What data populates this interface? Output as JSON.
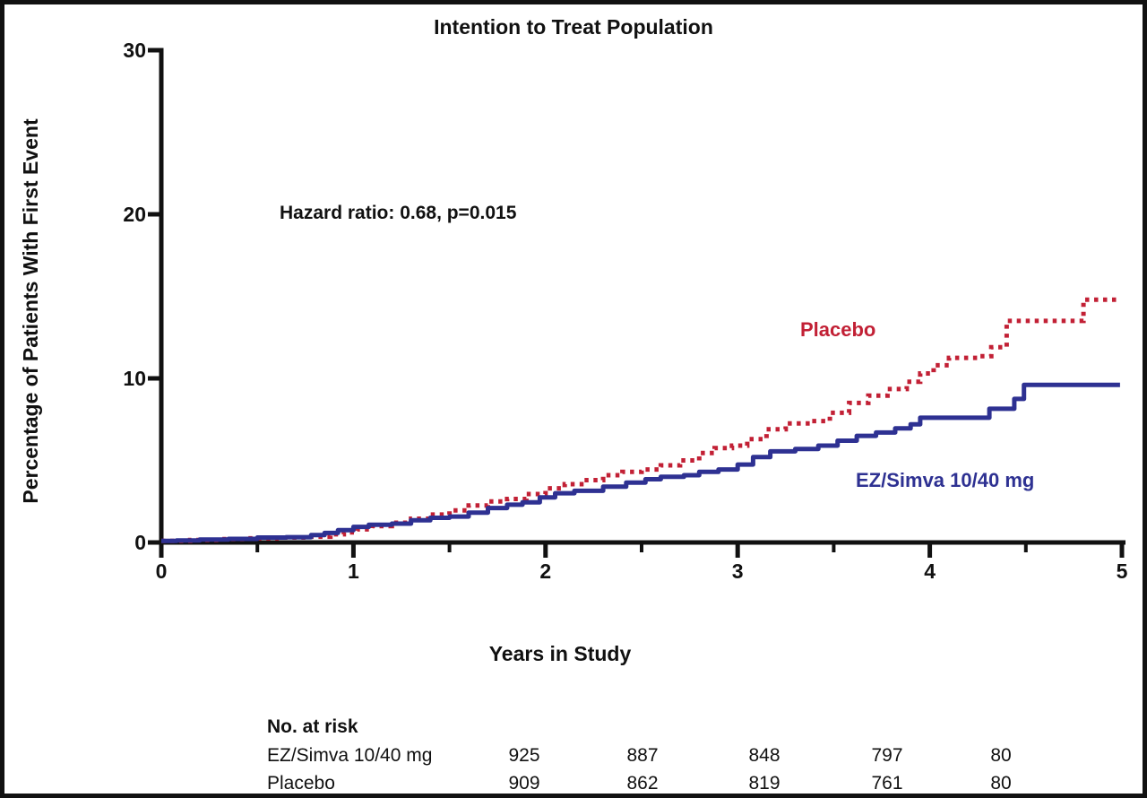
{
  "chart_data": {
    "type": "line",
    "subtype": "kaplan-meier-step",
    "title": "Intention to Treat Population",
    "annotation": "Hazard ratio: 0.68, p=0.015",
    "xlabel": "Years in Study",
    "ylabel": "Percentage of Patients With First Event",
    "xlim": [
      0,
      5
    ],
    "ylim": [
      0,
      30
    ],
    "x_ticks": [
      "0",
      "1",
      "2",
      "3",
      "4",
      "5"
    ],
    "x_minor_ticks": [
      0.5,
      1.5,
      2.5,
      3.5,
      4.5
    ],
    "y_ticks": [
      "0",
      "10",
      "20",
      "30"
    ],
    "grid": "off",
    "legend": "inline-labels-on-plot",
    "axis_color": "#111111",
    "series": [
      {
        "name": "Placebo",
        "color": "#C22035",
        "line_style": "dotted",
        "points": [
          [
            0,
            0.1
          ],
          [
            0.15,
            0.15
          ],
          [
            0.3,
            0.2
          ],
          [
            0.45,
            0.25
          ],
          [
            0.6,
            0.3
          ],
          [
            0.75,
            0.35
          ],
          [
            0.88,
            0.5
          ],
          [
            0.95,
            0.62
          ],
          [
            1.02,
            0.8
          ],
          [
            1.1,
            1.0
          ],
          [
            1.2,
            1.2
          ],
          [
            1.3,
            1.45
          ],
          [
            1.4,
            1.7
          ],
          [
            1.5,
            1.95
          ],
          [
            1.6,
            2.25
          ],
          [
            1.7,
            2.5
          ],
          [
            1.8,
            2.65
          ],
          [
            1.9,
            2.95
          ],
          [
            2.0,
            3.3
          ],
          [
            2.1,
            3.55
          ],
          [
            2.2,
            3.8
          ],
          [
            2.3,
            4.1
          ],
          [
            2.4,
            4.3
          ],
          [
            2.5,
            4.45
          ],
          [
            2.6,
            4.7
          ],
          [
            2.7,
            5.0
          ],
          [
            2.8,
            5.45
          ],
          [
            2.88,
            5.75
          ],
          [
            2.97,
            5.9
          ],
          [
            3.05,
            6.3
          ],
          [
            3.15,
            6.9
          ],
          [
            3.25,
            7.25
          ],
          [
            3.38,
            7.4
          ],
          [
            3.48,
            7.9
          ],
          [
            3.58,
            8.5
          ],
          [
            3.68,
            8.95
          ],
          [
            3.78,
            9.35
          ],
          [
            3.88,
            9.8
          ],
          [
            3.95,
            10.3
          ],
          [
            4.02,
            10.8
          ],
          [
            4.1,
            11.25
          ],
          [
            4.25,
            11.35
          ],
          [
            4.32,
            11.9
          ],
          [
            4.4,
            13.5
          ],
          [
            4.8,
            14.8
          ],
          [
            4.97,
            14.8
          ]
        ]
      },
      {
        "name": "EZ/Simva 10/40 mg",
        "color": "#2E3192",
        "line_style": "solid",
        "points": [
          [
            0,
            0.1
          ],
          [
            0.08,
            0.12
          ],
          [
            0.2,
            0.18
          ],
          [
            0.35,
            0.22
          ],
          [
            0.5,
            0.3
          ],
          [
            0.65,
            0.32
          ],
          [
            0.78,
            0.45
          ],
          [
            0.85,
            0.58
          ],
          [
            0.92,
            0.75
          ],
          [
            1.0,
            0.95
          ],
          [
            1.08,
            1.08
          ],
          [
            1.2,
            1.15
          ],
          [
            1.3,
            1.35
          ],
          [
            1.4,
            1.5
          ],
          [
            1.5,
            1.58
          ],
          [
            1.6,
            1.82
          ],
          [
            1.7,
            2.1
          ],
          [
            1.8,
            2.3
          ],
          [
            1.88,
            2.45
          ],
          [
            1.97,
            2.75
          ],
          [
            2.05,
            3.0
          ],
          [
            2.15,
            3.15
          ],
          [
            2.3,
            3.4
          ],
          [
            2.42,
            3.65
          ],
          [
            2.52,
            3.85
          ],
          [
            2.6,
            4.0
          ],
          [
            2.72,
            4.1
          ],
          [
            2.8,
            4.3
          ],
          [
            2.9,
            4.45
          ],
          [
            3.0,
            4.75
          ],
          [
            3.08,
            5.2
          ],
          [
            3.17,
            5.55
          ],
          [
            3.3,
            5.7
          ],
          [
            3.42,
            5.9
          ],
          [
            3.52,
            6.2
          ],
          [
            3.62,
            6.5
          ],
          [
            3.72,
            6.7
          ],
          [
            3.82,
            6.95
          ],
          [
            3.9,
            7.2
          ],
          [
            3.95,
            7.6
          ],
          [
            4.31,
            8.15
          ],
          [
            4.44,
            8.75
          ],
          [
            4.49,
            9.6
          ],
          [
            4.99,
            9.6
          ]
        ]
      }
    ],
    "risk_table": {
      "header": "No. at risk",
      "rows": [
        {
          "label": "EZ/Simva 10/40 mg",
          "values": [
            "925",
            "887",
            "848",
            "797",
            "80"
          ]
        },
        {
          "label": "Placebo",
          "values": [
            "909",
            "862",
            "819",
            "761",
            "80"
          ]
        }
      ]
    }
  },
  "labels": {
    "placebo_curve_label": "Placebo",
    "ez_simva_curve_label": "EZ/Simva 10/40 mg"
  }
}
